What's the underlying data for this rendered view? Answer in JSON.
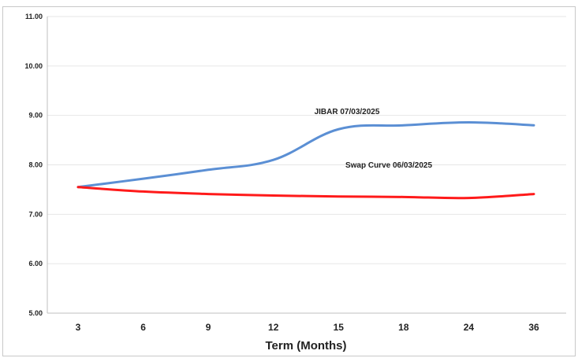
{
  "chart_data": {
    "type": "line",
    "xlabel": "Term (Months)",
    "ylabel": "",
    "categories": [
      "3",
      "6",
      "9",
      "12",
      "15",
      "18",
      "24",
      "36"
    ],
    "ylim": [
      5,
      11
    ],
    "yticks": [
      "5.00",
      "6.00",
      "7.00",
      "8.00",
      "9.00",
      "10.00",
      "11.00"
    ],
    "grid": true,
    "series": [
      {
        "name": "JIBAR 07/03/2025",
        "color": "#5b8fd4",
        "values": [
          7.55,
          7.72,
          7.9,
          8.1,
          8.72,
          8.8,
          8.86,
          8.8
        ]
      },
      {
        "name": "Swap Curve  06/03/2025",
        "color": "#ff1a1a",
        "values": [
          7.55,
          7.46,
          7.41,
          7.38,
          7.36,
          7.35,
          7.33,
          7.41
        ]
      }
    ]
  }
}
